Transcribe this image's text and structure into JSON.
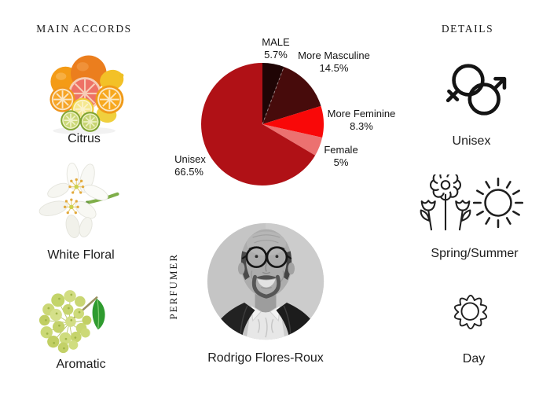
{
  "page": {
    "background_color": "#ffffff"
  },
  "main_accords": {
    "header": "MAIN ACCORDS",
    "items": [
      {
        "label": "Citrus",
        "image": "citrus-fruits-photo"
      },
      {
        "label": "White Floral",
        "image": "orange-blossom-photo"
      },
      {
        "label": "Aromatic",
        "image": "angelica-branch-photo"
      }
    ]
  },
  "details": {
    "header": "DETAILS",
    "items": [
      {
        "label": "Unisex",
        "icon": "unisex-gender-symbol-icon"
      },
      {
        "label": "Spring/Summer",
        "icon": "flowers-and-sun-icons"
      },
      {
        "label": "Day",
        "icon": "sun-badge-icon"
      }
    ]
  },
  "perfumer": {
    "section_label": "PERFUMER",
    "name": "Rodrigo Flores-Roux",
    "photo": "grayscale-portrait-photo"
  },
  "chart_data": {
    "type": "pie",
    "title": "",
    "start_angle_deg": 0,
    "direction": "clockwise",
    "legend_position": "labels-around-slices",
    "segments": [
      {
        "label": "MALE",
        "value": 5.7,
        "display": "5.7%",
        "color": "#1f0505"
      },
      {
        "label": "More Masculine",
        "value": 14.5,
        "display": "14.5%",
        "color": "#470b0b"
      },
      {
        "label": "More Feminine",
        "value": 8.3,
        "display": "8.3%",
        "color": "#f90808"
      },
      {
        "label": "Female",
        "value": 5,
        "display": "5%",
        "color": "#ec7170"
      },
      {
        "label": "Unisex",
        "value": 66.5,
        "display": "66.5%",
        "color": "#b01116"
      }
    ]
  }
}
